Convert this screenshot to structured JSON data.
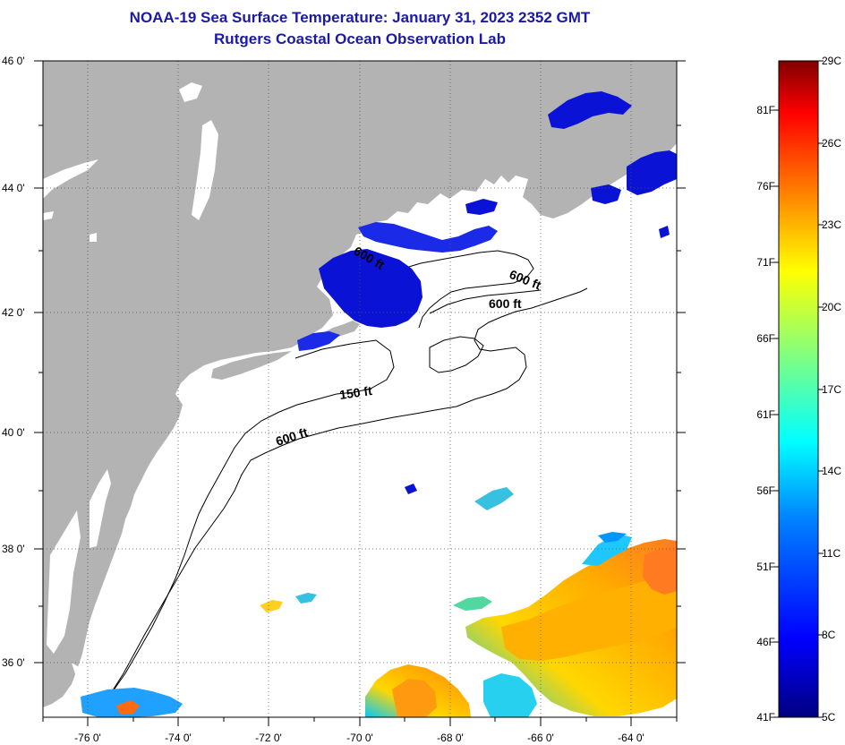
{
  "header": {
    "title_line_1": "NOAA-19 Sea Surface Temperature:  January 31, 2023 2352 GMT",
    "title_line_2": "Rutgers Coastal Ocean Observation Lab"
  },
  "map": {
    "region": "Mid-Atlantic Bight and Gulf of Maine",
    "lon_range": [
      -77,
      -63
    ],
    "lat_range": [
      35,
      46
    ],
    "lon_ticks": [
      {
        "value": -76,
        "label": "-76 0'"
      },
      {
        "value": -74,
        "label": "-74 0'"
      },
      {
        "value": -72,
        "label": "-72 0'"
      },
      {
        "value": -70,
        "label": "-70 0'"
      },
      {
        "value": -68,
        "label": "-68 0'"
      },
      {
        "value": -66,
        "label": "-66 0'"
      },
      {
        "value": -64,
        "label": "-64 0'"
      }
    ],
    "lat_ticks": [
      {
        "value": 46,
        "label": "46 0'"
      },
      {
        "value": 44,
        "label": "44 0'"
      },
      {
        "value": 42,
        "label": "42 0'"
      },
      {
        "value": 40,
        "label": "40 0'"
      },
      {
        "value": 38,
        "label": "38 0'"
      },
      {
        "value": 36,
        "label": "36 0'"
      }
    ],
    "grid": "dotted",
    "contour_labels": [
      {
        "text": "600 ft"
      },
      {
        "text": "600 ft"
      },
      {
        "text": "600 ft"
      },
      {
        "text": "150 ft"
      },
      {
        "text": "600 ft"
      }
    ],
    "colors": {
      "land": "#b3b3b3",
      "no_data_ocean": "#ffffff",
      "contour": "#000000"
    }
  },
  "colorbar": {
    "range_celsius": [
      5,
      29
    ],
    "celsius_ticks": [
      "29C",
      "26C",
      "23C",
      "20C",
      "17C",
      "14C",
      "11C",
      "8C",
      "5C"
    ],
    "fahrenheit_ticks": [
      "81F",
      "76F",
      "71F",
      "66F",
      "61F",
      "56F",
      "51F",
      "46F",
      "41F"
    ],
    "colormap": [
      "#000080",
      "#0000ff",
      "#0080ff",
      "#00ffff",
      "#80ff80",
      "#ffff00",
      "#ff8000",
      "#ff0000",
      "#800000"
    ]
  }
}
